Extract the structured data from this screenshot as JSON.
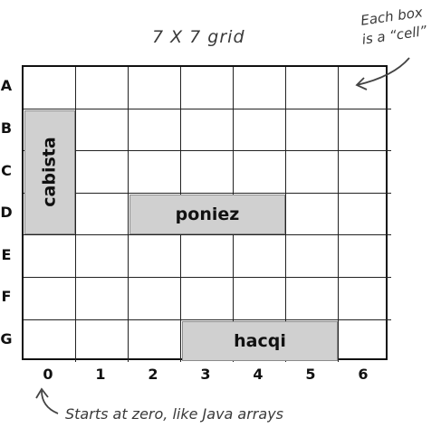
{
  "grid_title": "7 X 7 grid",
  "note_line1": "Each box",
  "note_line2": "is a “cell”",
  "footer_note": "Starts at zero, like Java arrays",
  "rows": [
    "A",
    "B",
    "C",
    "D",
    "E",
    "F",
    "G"
  ],
  "columns": [
    "0",
    "1",
    "2",
    "3",
    "4",
    "5",
    "6"
  ],
  "ships": [
    {
      "name": "cabista",
      "orientation": "vertical",
      "start_row": "B",
      "start_col": 0,
      "length": 3
    },
    {
      "name": "poniez",
      "orientation": "horizontal",
      "start_row": "D",
      "start_col": 2,
      "length": 3
    },
    {
      "name": "hacqi",
      "orientation": "horizontal",
      "start_row": "G",
      "start_col": 3,
      "length": 3
    }
  ]
}
